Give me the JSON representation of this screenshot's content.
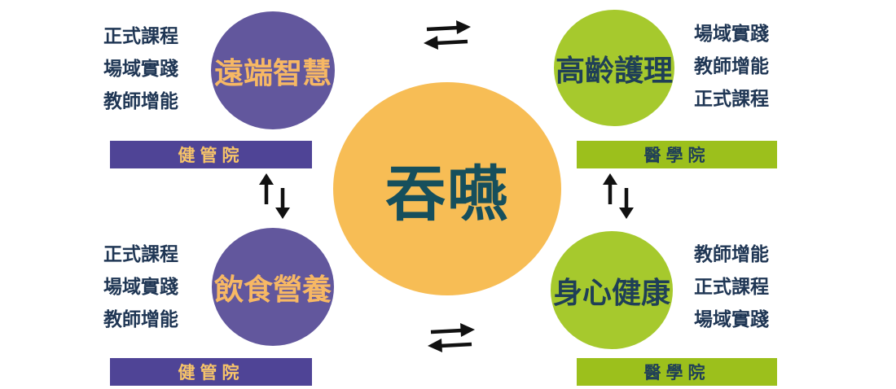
{
  "colors": {
    "purple": "#62579d",
    "purple_bar": "#4f4496",
    "green": "#a6c92d",
    "green_bar": "#9cc01c",
    "orange": "#f7bd55",
    "purple_bar_text": "#f7c469",
    "green_bar_text": "#1f3f57"
  },
  "center": {
    "label": "吞嚥"
  },
  "nodes": {
    "top_left": {
      "label": "遠端智慧",
      "items": [
        "正式課程",
        "場域實踐",
        "教師增能"
      ],
      "school": "健管院"
    },
    "bottom_left": {
      "label": "飲食營養",
      "items": [
        "正式課程",
        "場域實踐",
        "教師增能"
      ],
      "school": "健管院"
    },
    "top_right": {
      "label": "高齡護理",
      "items": [
        "場域實踐",
        "教師增能",
        "正式課程"
      ],
      "school": "醫學院"
    },
    "bottom_right": {
      "label": "身心健康",
      "items": [
        "教師增能",
        "正式課程",
        "場域實踐"
      ],
      "school": "醫學院"
    }
  },
  "icons": {
    "arrows_horizontal": "exchange-arrows-icon",
    "arrows_vertical": "up-down-arrows-icon"
  }
}
